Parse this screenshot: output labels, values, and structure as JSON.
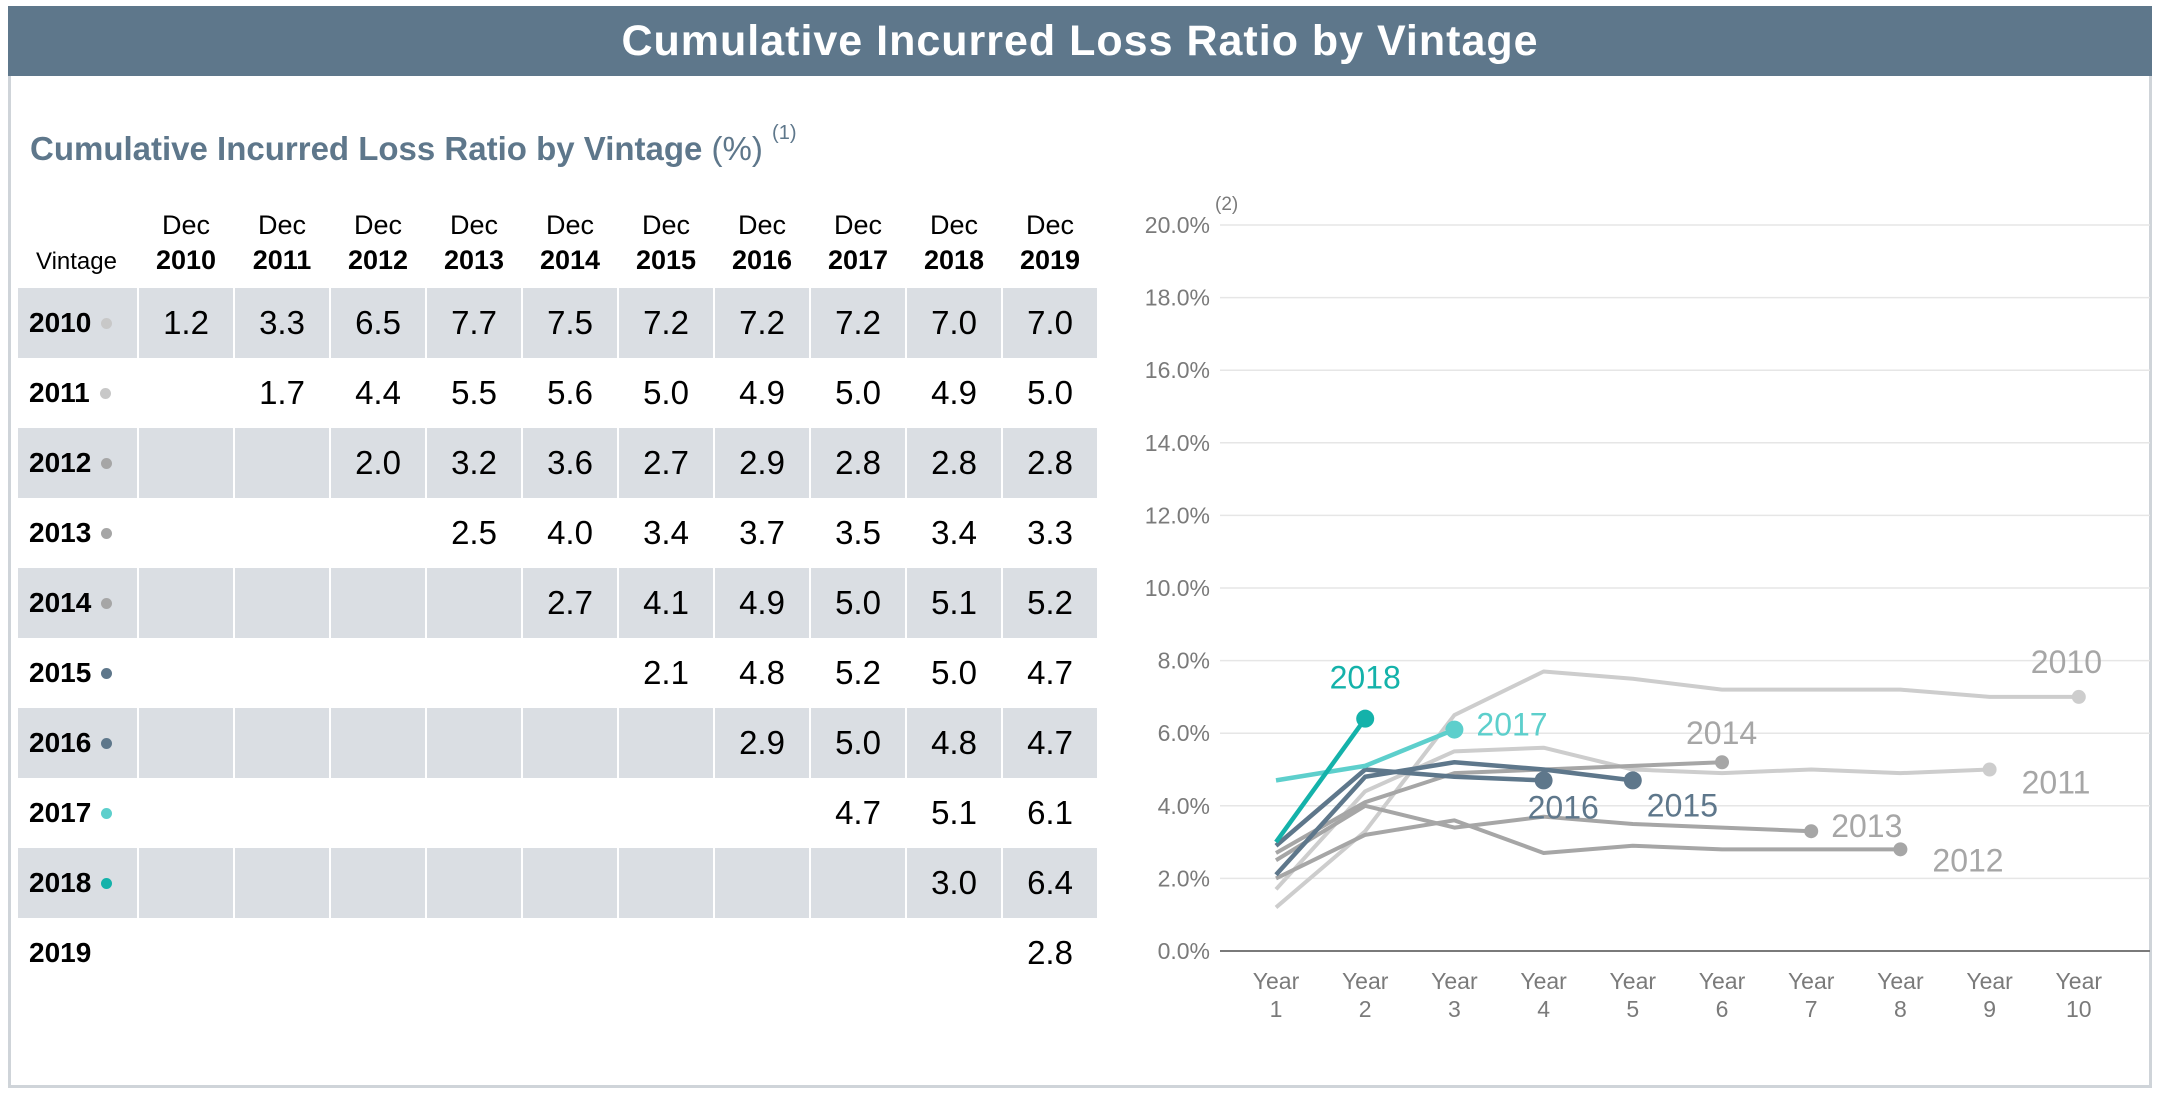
{
  "banner_title": "Cumulative Incurred Loss Ratio by Vintage",
  "subtitle": {
    "main": "Cumulative Incurred Loss Ratio by Vintage",
    "unit": " (%)",
    "footnote": "(1)"
  },
  "table": {
    "vintage_header": "Vintage",
    "columns": [
      {
        "top": "Dec",
        "year": "2010"
      },
      {
        "top": "Dec",
        "year": "2011"
      },
      {
        "top": "Dec",
        "year": "2012"
      },
      {
        "top": "Dec",
        "year": "2013"
      },
      {
        "top": "Dec",
        "year": "2014"
      },
      {
        "top": "Dec",
        "year": "2015"
      },
      {
        "top": "Dec",
        "year": "2016"
      },
      {
        "top": "Dec",
        "year": "2017"
      },
      {
        "top": "Dec",
        "year": "2018"
      },
      {
        "top": "Dec",
        "year": "2019"
      }
    ],
    "rows": [
      {
        "vintage": "2010",
        "dot_color": "#c8c8c8",
        "values": [
          "1.2",
          "3.3",
          "6.5",
          "7.7",
          "7.5",
          "7.2",
          "7.2",
          "7.2",
          "7.0",
          "7.0"
        ]
      },
      {
        "vintage": "2011",
        "dot_color": "#c8c8c8",
        "values": [
          "",
          "1.7",
          "4.4",
          "5.5",
          "5.6",
          "5.0",
          "4.9",
          "5.0",
          "4.9",
          "5.0"
        ]
      },
      {
        "vintage": "2012",
        "dot_color": "#a6a6a6",
        "values": [
          "",
          "",
          "2.0",
          "3.2",
          "3.6",
          "2.7",
          "2.9",
          "2.8",
          "2.8",
          "2.8"
        ]
      },
      {
        "vintage": "2013",
        "dot_color": "#a6a6a6",
        "values": [
          "",
          "",
          "",
          "2.5",
          "4.0",
          "3.4",
          "3.7",
          "3.5",
          "3.4",
          "3.3"
        ]
      },
      {
        "vintage": "2014",
        "dot_color": "#a6a6a6",
        "values": [
          "",
          "",
          "",
          "",
          "2.7",
          "4.1",
          "4.9",
          "5.0",
          "5.1",
          "5.2"
        ]
      },
      {
        "vintage": "2015",
        "dot_color": "#5e778b",
        "values": [
          "",
          "",
          "",
          "",
          "",
          "2.1",
          "4.8",
          "5.2",
          "5.0",
          "4.7"
        ]
      },
      {
        "vintage": "2016",
        "dot_color": "#5e778b",
        "values": [
          "",
          "",
          "",
          "",
          "",
          "",
          "2.9",
          "5.0",
          "4.8",
          "4.7"
        ]
      },
      {
        "vintage": "2017",
        "dot_color": "#5dcfcc",
        "values": [
          "",
          "",
          "",
          "",
          "",
          "",
          "",
          "4.7",
          "5.1",
          "6.1"
        ]
      },
      {
        "vintage": "2018",
        "dot_color": "#14b2aa",
        "values": [
          "",
          "",
          "",
          "",
          "",
          "",
          "",
          "",
          "3.0",
          "6.4"
        ]
      },
      {
        "vintage": "2019",
        "dot_color": "",
        "values": [
          "",
          "",
          "",
          "",
          "",
          "",
          "",
          "",
          "",
          "2.8"
        ]
      }
    ]
  },
  "chart_data": {
    "type": "line",
    "footnote": "(2)",
    "x_categories": [
      [
        "Year",
        "1"
      ],
      [
        "Year",
        "2"
      ],
      [
        "Year",
        "3"
      ],
      [
        "Year",
        "4"
      ],
      [
        "Year",
        "5"
      ],
      [
        "Year",
        "6"
      ],
      [
        "Year",
        "7"
      ],
      [
        "Year",
        "8"
      ],
      [
        "Year",
        "9"
      ],
      [
        "Year",
        "10"
      ]
    ],
    "y_ticks": [
      "0.0%",
      "2.0%",
      "4.0%",
      "6.0%",
      "8.0%",
      "10.0%",
      "12.0%",
      "14.0%",
      "16.0%",
      "18.0%",
      "20.0%"
    ],
    "ylim": [
      0,
      20
    ],
    "grid": true,
    "series": [
      {
        "name": "2010",
        "color": "#cdcdcd",
        "label_color": "#a6a6a6",
        "values": [
          1.2,
          3.3,
          6.5,
          7.7,
          7.5,
          7.2,
          7.2,
          7.2,
          7.0,
          7.0
        ]
      },
      {
        "name": "2011",
        "color": "#cdcdcd",
        "label_color": "#a6a6a6",
        "values": [
          1.7,
          4.4,
          5.5,
          5.6,
          5.0,
          4.9,
          5.0,
          4.9,
          5.0
        ]
      },
      {
        "name": "2012",
        "color": "#a6a6a6",
        "label_color": "#a6a6a6",
        "values": [
          2.0,
          3.2,
          3.6,
          2.7,
          2.9,
          2.8,
          2.8,
          2.8
        ]
      },
      {
        "name": "2013",
        "color": "#a6a6a6",
        "label_color": "#a6a6a6",
        "values": [
          2.5,
          4.0,
          3.4,
          3.7,
          3.5,
          3.4,
          3.3
        ]
      },
      {
        "name": "2014",
        "color": "#a6a6a6",
        "label_color": "#a6a6a6",
        "values": [
          2.7,
          4.1,
          4.9,
          5.0,
          5.1,
          5.2
        ]
      },
      {
        "name": "2015",
        "color": "#5e778b",
        "label_color": "#5e778b",
        "values": [
          2.1,
          4.8,
          5.2,
          5.0,
          4.7
        ]
      },
      {
        "name": "2016",
        "color": "#5e778b",
        "label_color": "#5e778b",
        "values": [
          2.9,
          5.0,
          4.8,
          4.7
        ]
      },
      {
        "name": "2017",
        "color": "#5dcfcc",
        "label_color": "#5dcfcc",
        "values": [
          4.7,
          5.1,
          6.1
        ]
      },
      {
        "name": "2018",
        "color": "#14b2aa",
        "label_color": "#14b2aa",
        "values": [
          3.0,
          6.4
        ]
      }
    ]
  }
}
